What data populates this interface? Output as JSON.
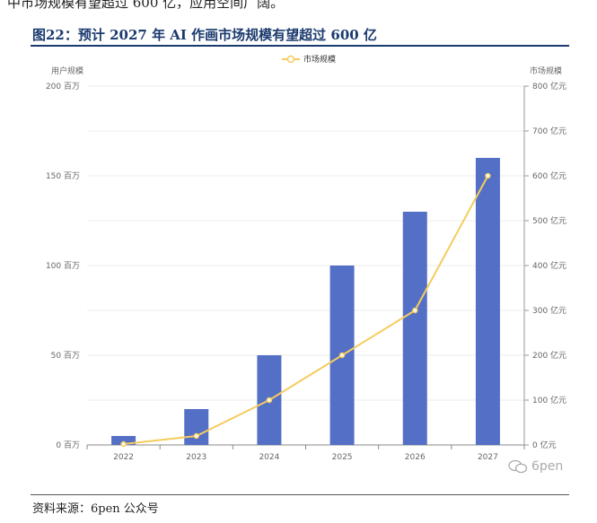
{
  "top_text": "中市场规模有望超过 600 亿，应用空间广阔。",
  "figure_title": "图22：预计 2027 年 AI 作画市场规模有望超过 600 亿",
  "source_text": "资料来源：6pen 公众号",
  "watermark_text": "6pen",
  "colors": {
    "bar": "#5470c6",
    "line": "#f5cc5e",
    "title": "#1a3a6e"
  },
  "chart_data": {
    "type": "bar",
    "title": "",
    "categories": [
      "2022",
      "2023",
      "2024",
      "2025",
      "2026",
      "2027"
    ],
    "legend": {
      "label": "市场规模",
      "position": "top-center"
    },
    "y_left": {
      "label": "用户规模",
      "range": [
        0,
        200
      ],
      "ticks": [
        "0 百万",
        "50 百万",
        "100 百万",
        "150 百万",
        "200 百万"
      ]
    },
    "y_right": {
      "label": "市场规模",
      "range": [
        0,
        800
      ],
      "ticks": [
        "0 亿元",
        "100 亿元",
        "200 亿元",
        "300 亿元",
        "400 亿元",
        "500 亿元",
        "600 亿元",
        "700 亿元",
        "800 亿元"
      ]
    },
    "series": [
      {
        "type": "bar",
        "axis": "left",
        "values": [
          5,
          20,
          50,
          100,
          130,
          160
        ]
      },
      {
        "type": "line",
        "axis": "right",
        "name": "市场规模",
        "values": [
          2,
          20,
          100,
          200,
          300,
          600
        ]
      }
    ]
  }
}
